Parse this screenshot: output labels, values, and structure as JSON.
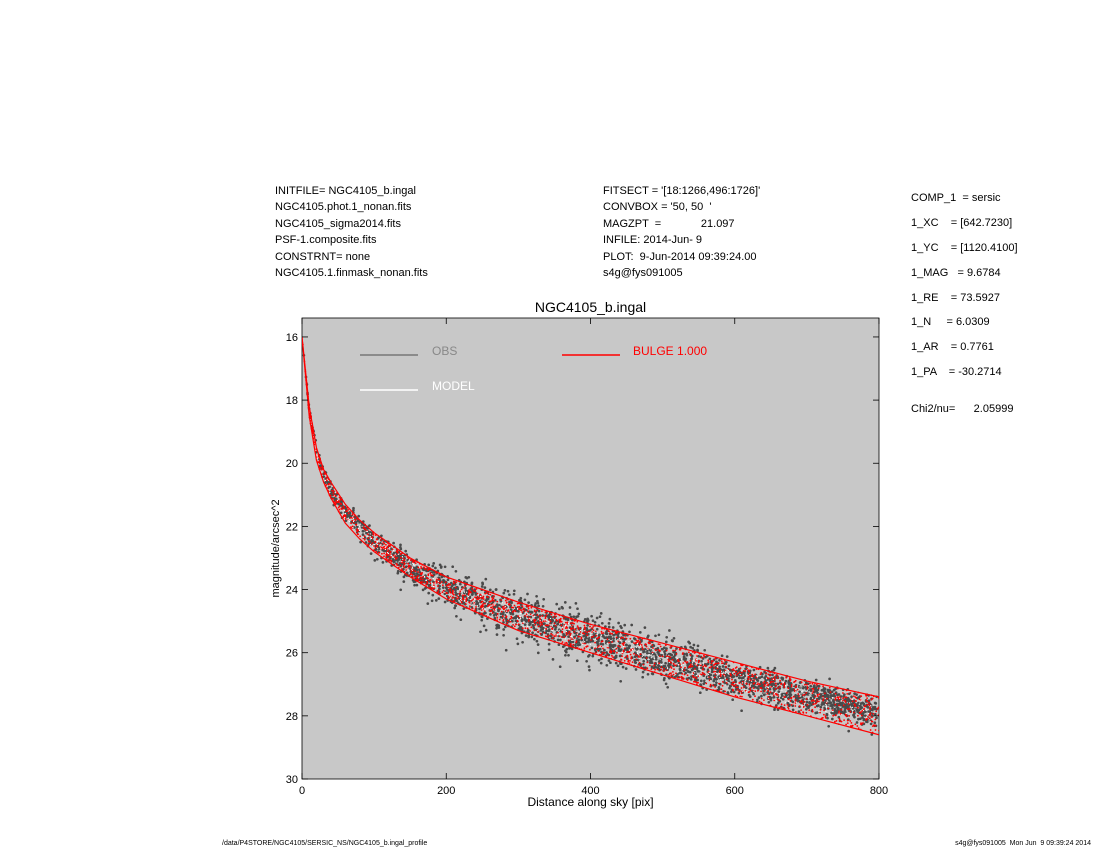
{
  "header_left": [
    "INITFILE= NGC4105_b.ingal",
    "NGC4105.phot.1_nonan.fits",
    "NGC4105_sigma2014.fits",
    "PSF-1.composite.fits",
    "CONSTRNT= none",
    "NGC4105.1.finmask_nonan.fits"
  ],
  "header_mid": [
    "FITSECT = '[18:1266,496:1726]'",
    "CONVBOX = '50, 50  '",
    "MAGZPT  =             21.097",
    "INFILE: 2014-Jun- 9",
    "PLOT:  9-Jun-2014 09:39:24.00",
    "s4g@fys091005"
  ],
  "header_right": [
    "COMP_1  = sersic",
    "1_XC    = [642.7230]",
    "1_YC    = [1120.4100]",
    "1_MAG   = 9.6784",
    "1_RE    = 73.5927",
    "1_N     = 6.0309",
    "1_AR    = 0.7761",
    "1_PA    = -30.2714"
  ],
  "chi2": "Chi2/nu=      2.05999",
  "footer_left": "/data/P4STORE/NGC4105/SERSIC_NS/NGC4105_b.ingal_profile",
  "footer_right": "s4g@fys091005  Mon Jun  9 09:39:24 2014",
  "colors": {
    "plot_background": "#c8c8c8",
    "obs": "#4a4a4a",
    "model": "#ffffff",
    "bulge": "#ff0000"
  },
  "chart_data": {
    "type": "scatter",
    "title": "NGC4105_b.ingal",
    "xlabel": "Distance along sky [pix]",
    "ylabel": "magnitude/arcsec^2",
    "xlim": [
      0,
      800
    ],
    "ylim": [
      30,
      15.4
    ],
    "y_inverted": true,
    "grid": false,
    "xticks": [
      "0",
      "200",
      "400",
      "600",
      "800"
    ],
    "yticks": [
      "16",
      "18",
      "20",
      "22",
      "24",
      "26",
      "28",
      "30"
    ],
    "legend": [
      {
        "name": "OBS",
        "color": "#888888"
      },
      {
        "name": "MODEL",
        "color": "#ffffff"
      },
      {
        "name": "BULGE  1.000",
        "color": "#ff0000"
      }
    ],
    "series": [
      {
        "name": "OBS",
        "color": "#4a4a4a",
        "x": [
          0,
          10,
          20,
          30,
          40,
          60,
          80,
          100,
          150,
          200,
          250,
          300,
          400,
          500,
          600,
          700,
          800
        ],
        "y": [
          16.0,
          18.3,
          19.6,
          20.3,
          20.8,
          21.5,
          22.0,
          22.5,
          23.3,
          23.9,
          24.4,
          24.8,
          25.5,
          26.2,
          26.8,
          27.4,
          27.9
        ],
        "scatter_sd": [
          0.1,
          0.15,
          0.2,
          0.25,
          0.3,
          0.35,
          0.4,
          0.45,
          0.55,
          0.7,
          0.8,
          0.85,
          0.85,
          0.8,
          0.7,
          0.65,
          0.55
        ]
      },
      {
        "name": "MODEL",
        "color": "#ffffff",
        "x": [
          0,
          10,
          20,
          30,
          40,
          60,
          80,
          100,
          150,
          200,
          250,
          300,
          400,
          500,
          600,
          700,
          800
        ],
        "y": [
          16.0,
          18.3,
          19.6,
          20.3,
          20.8,
          21.5,
          22.0,
          22.5,
          23.3,
          23.9,
          24.4,
          24.8,
          25.5,
          26.2,
          26.8,
          27.4,
          27.9
        ]
      },
      {
        "name": "BULGE  1.000",
        "color": "#ff0000",
        "x": [
          0,
          10,
          20,
          30,
          40,
          60,
          80,
          100,
          150,
          200,
          250,
          300,
          400,
          500,
          600,
          700,
          800
        ],
        "y_upper": [
          16.0,
          18.2,
          19.5,
          20.2,
          20.6,
          21.3,
          21.8,
          22.2,
          23.0,
          23.6,
          24.0,
          24.4,
          25.1,
          25.7,
          26.3,
          26.9,
          27.4
        ],
        "y_lower": [
          16.0,
          18.5,
          19.9,
          20.6,
          21.1,
          21.9,
          22.4,
          22.8,
          23.6,
          24.3,
          24.8,
          25.3,
          26.0,
          26.7,
          27.4,
          28.0,
          28.6
        ]
      }
    ]
  }
}
